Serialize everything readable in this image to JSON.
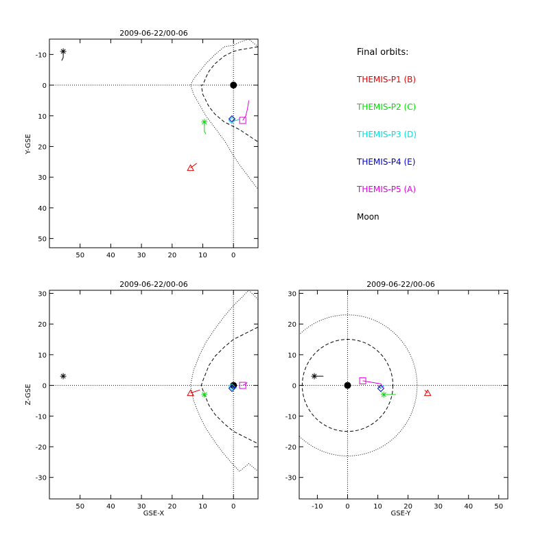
{
  "legend": {
    "title": "Final orbits:",
    "entries": [
      {
        "label": "THEMIS-P1 (B)",
        "color": "#e00000"
      },
      {
        "label": "THEMIS-P2 (C)",
        "color": "#00e000"
      },
      {
        "label": "THEMIS-P3 (D)",
        "color": "#00e0e0"
      },
      {
        "label": "THEMIS-P4 (E)",
        "color": "#0000d0"
      },
      {
        "label": "THEMIS-P5 (A)",
        "color": "#e000e0"
      },
      {
        "label": "Moon",
        "color": "#000000"
      }
    ]
  },
  "chart_data": [
    {
      "type": "scatter",
      "title": "2009-06-22/00-06",
      "xlabel": "",
      "ylabel": "Y-GSE",
      "xlim": [
        60,
        -8
      ],
      "ylim": [
        53,
        -15
      ],
      "xticks": [
        50,
        40,
        30,
        20,
        10,
        0
      ],
      "yticks": [
        -10,
        0,
        10,
        20,
        30,
        40,
        50
      ],
      "reference_lines": {
        "x": 0,
        "y": 0
      },
      "earth": [
        0,
        0
      ],
      "boundaries": [
        {
          "name": "magnetopause",
          "x": [
            -8,
            -5,
            -2,
            0,
            3,
            6,
            8,
            9,
            10,
            10.5,
            10,
            9,
            8,
            6,
            3,
            0,
            -2,
            -5,
            -8
          ],
          "y": [
            -12.5,
            -12,
            -11.5,
            -11,
            -9.5,
            -7,
            -4.5,
            -2.5,
            0,
            0,
            3,
            5,
            7,
            9.5,
            12,
            13.5,
            14.5,
            16.5,
            18.5
          ]
        },
        {
          "name": "bow_shock",
          "x": [
            -8,
            -5,
            -2,
            0,
            3,
            6,
            9,
            11,
            13,
            14,
            14,
            13,
            11,
            9,
            6,
            3,
            0,
            -2,
            -5,
            -8
          ],
          "y": [
            -12.5,
            -15,
            -14,
            -13,
            -12.5,
            -10,
            -7,
            -4.5,
            -2,
            0,
            0,
            3,
            6.5,
            10,
            14,
            18,
            23,
            26,
            30,
            34
          ]
        }
      ],
      "series": [
        {
          "name": "THEMIS-P1 (B)",
          "color": "#e00000",
          "symbol": "triangle",
          "x": [
            14,
            12
          ],
          "y": [
            27,
            25.5
          ]
        },
        {
          "name": "THEMIS-P2 (C)",
          "color": "#00e000",
          "symbol": "asterisk",
          "x": [
            9.5,
            9.5,
            9
          ],
          "y": [
            12,
            15,
            16
          ]
        },
        {
          "name": "THEMIS-P3 (D)",
          "color": "#00e0e0",
          "symbol": "diamond",
          "x": [
            0.5,
            -1,
            -2
          ],
          "y": [
            11.5,
            11.5,
            11
          ]
        },
        {
          "name": "THEMIS-P4 (E)",
          "color": "#0000d0",
          "symbol": "diamond",
          "x": [
            0.5
          ],
          "y": [
            11
          ]
        },
        {
          "name": "THEMIS-P5 (A)",
          "color": "#e000e0",
          "symbol": "square",
          "x": [
            -3,
            -4,
            -4.5,
            -5
          ],
          "y": [
            11.5,
            10,
            8,
            5
          ]
        },
        {
          "name": "Moon",
          "color": "#000000",
          "symbol": "asterisk",
          "x": [
            55.5,
            55.5,
            56
          ],
          "y": [
            -11,
            -9,
            -8
          ]
        }
      ]
    },
    {
      "type": "scatter",
      "title": "2009-06-22/00-06",
      "xlabel": "GSE-X",
      "ylabel": "Z-GSE",
      "xlim": [
        60,
        -8
      ],
      "ylim": [
        -37,
        31
      ],
      "xticks": [
        50,
        40,
        30,
        20,
        10,
        0
      ],
      "yticks": [
        -30,
        -20,
        -10,
        0,
        10,
        20,
        30
      ],
      "reference_lines": {
        "x": 0,
        "y": 0
      },
      "earth": [
        0,
        0
      ],
      "boundaries": [
        {
          "name": "magnetopause",
          "x": [
            -8,
            -5,
            -2,
            0,
            3,
            6,
            8,
            9,
            10,
            10.5,
            10,
            9,
            8,
            6,
            3,
            0,
            -2,
            -5,
            -8
          ],
          "y": [
            19,
            17.5,
            16,
            15,
            12.5,
            9.5,
            6.5,
            4,
            1.5,
            0,
            -1.5,
            -4,
            -6.5,
            -9.5,
            -12.5,
            -15,
            -16,
            -17.5,
            -19
          ]
        },
        {
          "name": "bow_shock",
          "x": [
            -8,
            -5,
            -2,
            0,
            3,
            6,
            9,
            11,
            13,
            14,
            13,
            11,
            9,
            6,
            3,
            0,
            -2,
            -5,
            -8
          ],
          "y": [
            28,
            31,
            28,
            26,
            22.5,
            18.5,
            14,
            10,
            5,
            0,
            -5,
            -10,
            -14,
            -18.5,
            -22.5,
            -26,
            -28,
            -25.5,
            -28
          ]
        }
      ],
      "series": [
        {
          "name": "THEMIS-P1 (B)",
          "color": "#e00000",
          "symbol": "triangle",
          "x": [
            14,
            11
          ],
          "y": [
            -2.5,
            -1.5
          ]
        },
        {
          "name": "THEMIS-P2 (C)",
          "color": "#00e000",
          "symbol": "asterisk",
          "x": [
            9.5
          ],
          "y": [
            -3
          ]
        },
        {
          "name": "THEMIS-P3 (D)",
          "color": "#00e0e0",
          "symbol": "diamond",
          "x": [
            0.5,
            -1
          ],
          "y": [
            -0.5,
            -1
          ]
        },
        {
          "name": "THEMIS-P4 (E)",
          "color": "#0000d0",
          "symbol": "diamond",
          "x": [
            0.5,
            -1
          ],
          "y": [
            -1,
            -0.5
          ]
        },
        {
          "name": "THEMIS-P5 (A)",
          "color": "#e000e0",
          "symbol": "square",
          "x": [
            -3,
            -4,
            -4.5
          ],
          "y": [
            0,
            0.5,
            1
          ]
        },
        {
          "name": "Moon",
          "color": "#000000",
          "symbol": "asterisk",
          "x": [
            55.5
          ],
          "y": [
            3
          ]
        }
      ]
    },
    {
      "type": "scatter",
      "title": "2009-06-22/00-06",
      "xlabel": "GSE-Y",
      "ylabel": "",
      "xlim": [
        -16,
        53
      ],
      "ylim": [
        -37,
        31
      ],
      "xticks": [
        -10,
        0,
        10,
        20,
        30,
        40,
        50
      ],
      "yticks": [
        -30,
        -20,
        -10,
        0,
        10,
        20,
        30
      ],
      "reference_lines": {
        "x": 0,
        "y": 0
      },
      "earth": [
        0,
        0
      ],
      "circles": [
        {
          "name": "magnetopause",
          "r": 15
        },
        {
          "name": "bow_shock",
          "r": 23
        }
      ],
      "series": [
        {
          "name": "THEMIS-P1 (B)",
          "color": "#e00000",
          "symbol": "triangle",
          "x": [
            26.5,
            25.5
          ],
          "y": [
            -2.5,
            -1.5
          ]
        },
        {
          "name": "THEMIS-P2 (C)",
          "color": "#00e000",
          "symbol": "asterisk",
          "x": [
            12,
            16
          ],
          "y": [
            -3,
            -3
          ]
        },
        {
          "name": "THEMIS-P3 (D)",
          "color": "#00e0e0",
          "symbol": "diamond",
          "x": [
            11,
            12
          ],
          "y": [
            -1,
            0
          ]
        },
        {
          "name": "THEMIS-P4 (E)",
          "color": "#0000d0",
          "symbol": "diamond",
          "x": [
            11,
            10
          ],
          "y": [
            -1,
            0
          ]
        },
        {
          "name": "THEMIS-P5 (A)",
          "color": "#e000e0",
          "symbol": "square",
          "x": [
            5,
            8,
            11,
            12
          ],
          "y": [
            1.5,
            1,
            0.5,
            -1
          ]
        },
        {
          "name": "Moon",
          "color": "#000000",
          "symbol": "asterisk",
          "x": [
            -11,
            -8
          ],
          "y": [
            3,
            3
          ]
        }
      ]
    }
  ]
}
